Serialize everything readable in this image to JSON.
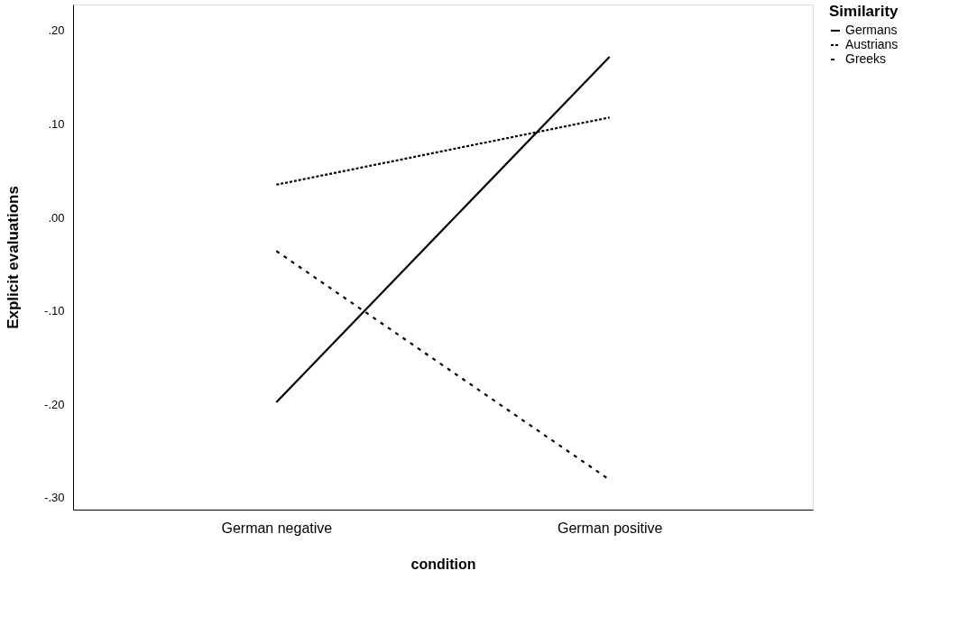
{
  "chart_data": {
    "type": "line",
    "xlabel": "condition",
    "ylabel": "Explicit evaluations",
    "legend_title": "Similarity",
    "categories": [
      "German negative",
      "German positive"
    ],
    "series": [
      {
        "name": "Germans",
        "color": "#000000",
        "line_style": "solid",
        "values": [
          -0.198,
          0.172
        ]
      },
      {
        "name": "Austrians",
        "color": "#000000",
        "line_style": "dotted",
        "values": [
          0.035,
          0.107
        ]
      },
      {
        "name": "Greeks",
        "color": "#000000",
        "line_style": "dashed",
        "values": [
          -0.036,
          -0.281
        ]
      }
    ],
    "ylim": [
      -0.313,
      0.228
    ],
    "yticks": [
      {
        "value": -0.3,
        "label": "-.30"
      },
      {
        "value": -0.2,
        "label": "-.20"
      },
      {
        "value": -0.1,
        "label": "-.10"
      },
      {
        "value": 0,
        "label": ".00"
      },
      {
        "value": 0.1,
        "label": ".10"
      },
      {
        "value": 0.2,
        "label": ".20"
      }
    ],
    "grid": false,
    "legend": "top right",
    "marker": "none"
  }
}
